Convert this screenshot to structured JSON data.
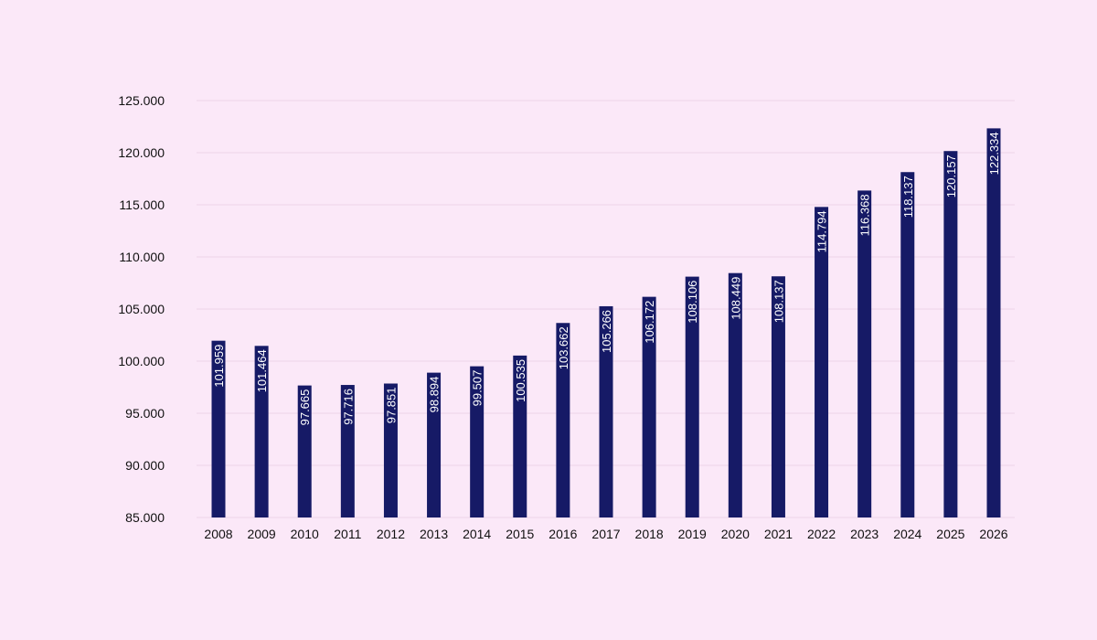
{
  "chart_data": {
    "type": "bar",
    "categories": [
      "2008",
      "2009",
      "2010",
      "2011",
      "2012",
      "2013",
      "2014",
      "2015",
      "2016",
      "2017",
      "2018",
      "2019",
      "2020",
      "2021",
      "2022",
      "2023",
      "2024",
      "2025",
      "2026"
    ],
    "values": [
      101959,
      101464,
      97665,
      97716,
      97851,
      98894,
      99507,
      100535,
      103662,
      105266,
      106172,
      108106,
      108449,
      108137,
      114794,
      116368,
      118137,
      120157,
      122334
    ],
    "data_labels": [
      "101.959",
      "101.464",
      "97.665",
      "97.716",
      "97.851",
      "98.894",
      "99.507",
      "100.535",
      "103.662",
      "105.266",
      "106.172",
      "108.106",
      "108.449",
      "108.137",
      "114.794",
      "116.368",
      "118.137",
      "120.157",
      "122.334"
    ],
    "y_ticks": [
      85000,
      90000,
      95000,
      100000,
      105000,
      110000,
      115000,
      120000,
      125000
    ],
    "y_tick_labels": [
      "85.000",
      "90.000",
      "95.000",
      "100.000",
      "105.000",
      "110.000",
      "115.000",
      "120.000",
      "125.000"
    ],
    "ylim": [
      85000,
      125000
    ],
    "grid": true,
    "colors": {
      "bar": "#161a66",
      "background": "#fbe8f8",
      "grid": "#ecd3e8",
      "tick_text": "#111111",
      "label_text": "#ffffff"
    },
    "title": "",
    "xlabel": "",
    "ylabel": ""
  }
}
